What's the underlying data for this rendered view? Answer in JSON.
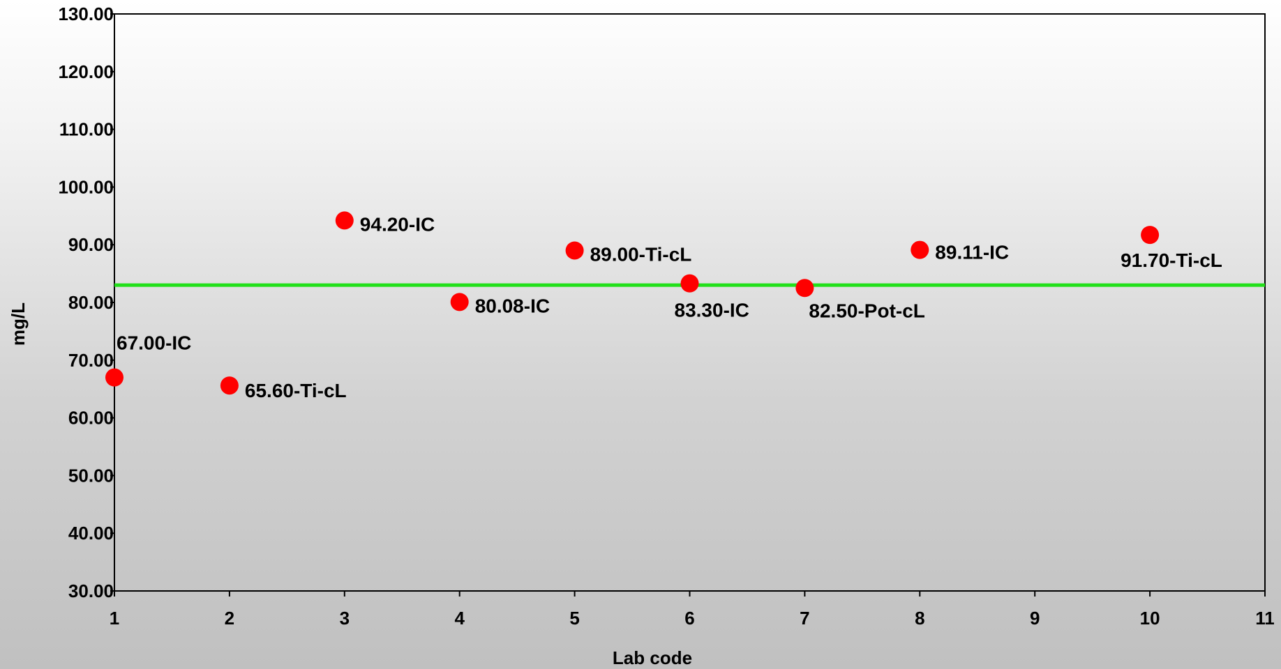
{
  "chart_data": {
    "type": "scatter",
    "xlabel": "Lab code",
    "ylabel": "mg/L",
    "xlim": [
      1,
      11
    ],
    "ylim": [
      30,
      130
    ],
    "x_ticks": [
      "1",
      "2",
      "3",
      "4",
      "5",
      "6",
      "7",
      "8",
      "9",
      "10",
      "11"
    ],
    "y_ticks": [
      "30.00",
      "40.00",
      "50.00",
      "60.00",
      "70.00",
      "80.00",
      "90.00",
      "100.00",
      "110.00",
      "120.00",
      "130.00"
    ],
    "reference_line": {
      "y": 83,
      "color": "#22e01a"
    },
    "marker_color": "#ff0000",
    "grid": false,
    "points": [
      {
        "x": 1,
        "y": 67.0,
        "label": "67.00-IC"
      },
      {
        "x": 2,
        "y": 65.6,
        "label": "65.60-Ti-cL"
      },
      {
        "x": 3,
        "y": 94.2,
        "label": "94.20-IC"
      },
      {
        "x": 4,
        "y": 80.08,
        "label": "80.08-IC"
      },
      {
        "x": 5,
        "y": 89.0,
        "label": "89.00-Ti-cL"
      },
      {
        "x": 6,
        "y": 83.3,
        "label": "83.30-IC"
      },
      {
        "x": 7,
        "y": 82.5,
        "label": "82.50-Pot-cL"
      },
      {
        "x": 8,
        "y": 89.11,
        "label": "89.11-IC"
      },
      {
        "x": 10,
        "y": 91.7,
        "label": "91.70-Ti-cL"
      }
    ]
  }
}
